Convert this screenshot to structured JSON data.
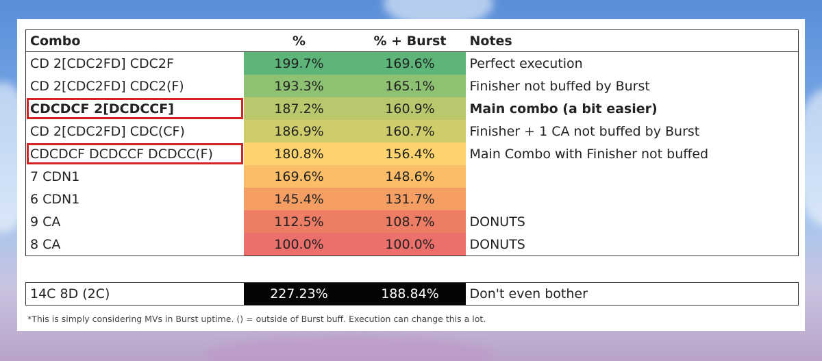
{
  "table": {
    "headers": [
      "Combo",
      "%",
      "% + Burst",
      "Notes"
    ],
    "rows": [
      {
        "combo": "CD 2[CDC2FD] CDC2F",
        "pct": "199.7%",
        "burst": "169.6%",
        "note": "Perfect execution",
        "color": "#5db57a",
        "bold": false,
        "highlight": false
      },
      {
        "combo": "CD 2[CDC2FD] CDC2(F)",
        "pct": "193.3%",
        "burst": "165.1%",
        "note": "Finisher not buffed by Burst",
        "color": "#8ec172",
        "bold": false,
        "highlight": false
      },
      {
        "combo": "CDCDCF 2[DCDCCF]",
        "pct": "187.2%",
        "burst": "160.9%",
        "note": "Main combo (a bit easier)",
        "color": "#b9c86c",
        "bold": true,
        "highlight": true
      },
      {
        "combo": "CD 2[CDC2FD] CDC(CF)",
        "pct": "186.9%",
        "burst": "160.7%",
        "note": "Finisher + 1 CA not buffed by Burst",
        "color": "#cfcd6b",
        "bold": false,
        "highlight": false
      },
      {
        "combo": "CDCDCF DCDCCF DCDCC(F)",
        "pct": "180.8%",
        "burst": "156.4%",
        "note": "Main Combo with Finisher not buffed",
        "color": "#fdd36d",
        "bold": false,
        "highlight": true
      },
      {
        "combo": "7 CDN1",
        "pct": "169.6%",
        "burst": "148.6%",
        "note": "",
        "color": "#fbbd67",
        "bold": false,
        "highlight": false
      },
      {
        "combo": "6 CDN1",
        "pct": "145.4%",
        "burst": "131.7%",
        "note": "",
        "color": "#f59e63",
        "bold": false,
        "highlight": false
      },
      {
        "combo": "9 CA",
        "pct": "112.5%",
        "burst": "108.7%",
        "note": "DONUTS",
        "color": "#ee7d66",
        "bold": false,
        "highlight": false
      },
      {
        "combo": "8 CA",
        "pct": "100.0%",
        "burst": "100.0%",
        "note": "DONUTS",
        "color": "#eb6f6b",
        "bold": false,
        "highlight": false
      }
    ]
  },
  "extra": {
    "combo": "14C 8D (2C)",
    "pct": "227.23%",
    "burst": "188.84%",
    "note": "Don't even bother"
  },
  "footnote": "*This is simply considering MVs in Burst uptime. () = outside of Burst buff. Execution can change this a lot."
}
